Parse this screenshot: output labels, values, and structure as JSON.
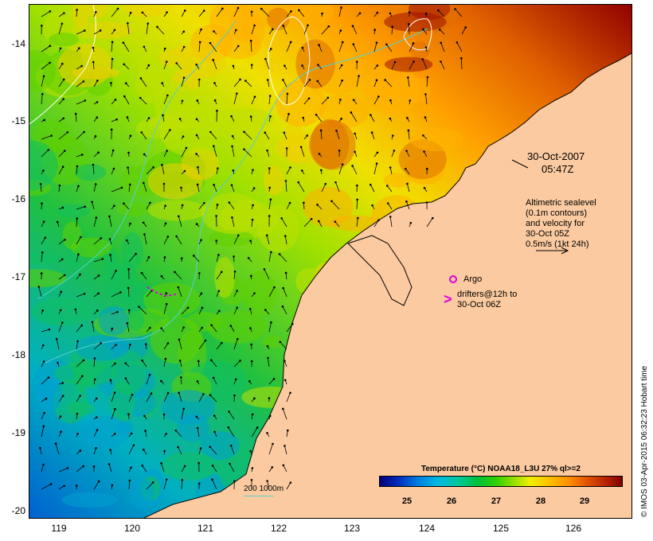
{
  "map": {
    "y_axis_labels": [
      "-14",
      "-15",
      "-16",
      "-17",
      "-18",
      "-19",
      "-20"
    ],
    "x_axis_labels": [
      "119",
      "120",
      "121",
      "122",
      "123",
      "124",
      "125",
      "126"
    ],
    "date": "30-Oct-2007",
    "time": "05:47Z",
    "velocity_note": "Altimetric sealevel\n(0.1m contours)\nand velocity for\n30-Oct 05Z\n0.5m/s (1kt 24h)",
    "argo_label": "Argo",
    "drifters_label": "drifters@12h to\n30-Oct 06Z",
    "bathymetry_scale": "200  1000m",
    "colorbar_title": "Temperature (°C) NOAA18_L3U 27% ql>=2",
    "colorbar_ticks": [
      "25",
      "26",
      "27",
      "28",
      "29"
    ],
    "credit": "© IMOS 03-Apr-2015 06:32:23 Hobart time"
  },
  "colors": {
    "land": "#fccaa0",
    "argo": "#e000e0",
    "contour_bathy": "#55d0d0",
    "contour_sealevel": "#ffffff"
  },
  "chart_data": {
    "type": "heatmap",
    "x_range": [
      118.6,
      126.8
    ],
    "y_range": [
      -20.1,
      -13.55
    ],
    "colorbar_range": [
      24.5,
      29.8
    ]
  }
}
